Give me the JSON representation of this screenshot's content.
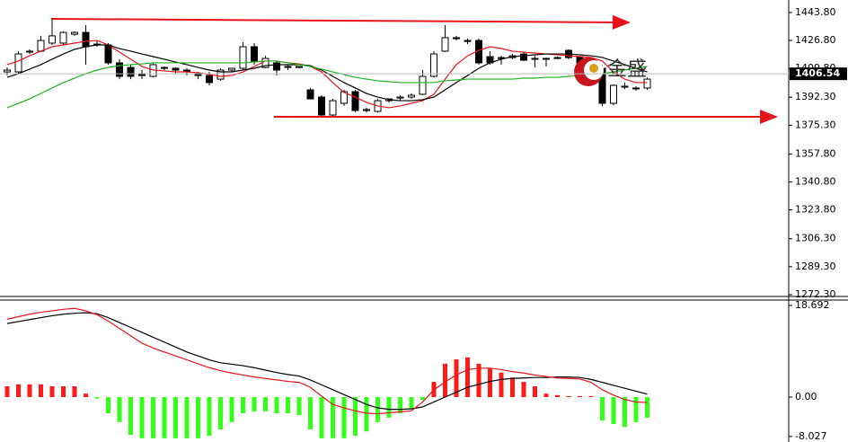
{
  "chart_data": [
    {
      "type": "candlestick",
      "up_color": "#ffffff",
      "down_color": "#000000",
      "open": [
        1407.7,
        1407.7,
        1419.7,
        1420.3,
        1425.2,
        1425.2,
        1430.6,
        1431.7,
        1424.6,
        1424.1,
        1413.2,
        1410.4,
        1406.6,
        1405.0,
        1410.4,
        1409.9,
        1408.8,
        1406.6,
        1405.5,
        1403.3,
        1408.8,
        1409.9,
        1423.0,
        1410.4,
        1413.2,
        1411.0,
        1410.4,
        1396.8,
        1392.4,
        1381.5,
        1388.6,
        1395.7,
        1384.2,
        1383.7,
        1390.2,
        1391.8,
        1392.4,
        1394.1,
        1405.0,
        1420.3,
        1428.5,
        1426.8,
        1426.8,
        1417.0,
        1416.4,
        1416.4,
        1418.6,
        1415.9,
        1415.4,
        1416.0,
        1420.8,
        1417.0,
        1413.2,
        1409.9,
        1388.6,
        1398.4,
        1397.4,
        1397.9
      ],
      "high": [
        1410.4,
        1420.3,
        1421.4,
        1429.6,
        1440.5,
        1432.3,
        1432.3,
        1436.1,
        1426.8,
        1425.2,
        1415.4,
        1412.1,
        1408.8,
        1413.2,
        1411.0,
        1410.4,
        1409.9,
        1407.7,
        1407.7,
        1409.9,
        1409.9,
        1425.7,
        1425.2,
        1417.5,
        1414.8,
        1412.1,
        1411.0,
        1397.9,
        1393.5,
        1391.3,
        1396.8,
        1396.8,
        1385.9,
        1391.3,
        1391.3,
        1393.5,
        1394.6,
        1408.8,
        1420.3,
        1436.1,
        1429.6,
        1427.9,
        1427.9,
        1420.3,
        1417.5,
        1418.6,
        1419.7,
        1417.5,
        1416.4,
        1417.0,
        1421.4,
        1417.5,
        1415.4,
        1412.1,
        1400.1,
        1401.2,
        1399.0,
        1404.4
      ],
      "low": [
        1405.5,
        1406.6,
        1418.6,
        1419.7,
        1424.1,
        1424.1,
        1429.6,
        1412.1,
        1423.0,
        1412.1,
        1403.3,
        1403.3,
        1403.3,
        1404.4,
        1408.8,
        1406.6,
        1405.5,
        1403.3,
        1399.5,
        1402.3,
        1407.7,
        1408.8,
        1412.1,
        1409.9,
        1405.5,
        1408.8,
        1409.9,
        1391.3,
        1380.4,
        1380.4,
        1387.0,
        1383.1,
        1383.1,
        1383.1,
        1389.1,
        1390.2,
        1391.3,
        1393.5,
        1404.4,
        1419.7,
        1426.8,
        1424.6,
        1412.1,
        1412.1,
        1412.1,
        1415.4,
        1414.3,
        1410.4,
        1411.0,
        1415.4,
        1415.4,
        1411.0,
        1411.0,
        1387.0,
        1387.5,
        1397.3,
        1396.2,
        1396.8
      ],
      "close": [
        1408.8,
        1418.6,
        1420.3,
        1426.8,
        1429.6,
        1431.7,
        1431.7,
        1423.0,
        1424.1,
        1413.2,
        1405.0,
        1405.0,
        1405.5,
        1412.1,
        1409.9,
        1408.8,
        1407.7,
        1405.5,
        1401.2,
        1408.8,
        1409.9,
        1423.0,
        1414.3,
        1415.9,
        1408.8,
        1410.4,
        1411.0,
        1391.3,
        1381.5,
        1390.2,
        1395.7,
        1384.2,
        1384.8,
        1390.2,
        1391.3,
        1392.4,
        1393.5,
        1405.0,
        1418.6,
        1428.5,
        1427.9,
        1426.2,
        1413.2,
        1413.2,
        1415.9,
        1417.5,
        1414.8,
        1415.4,
        1415.9,
        1416.4,
        1416.4,
        1413.2,
        1412.1,
        1388.6,
        1399.5,
        1399.0,
        1397.9,
        1403.3
      ],
      "series": [
        {
          "color": "#e8141c",
          "values": [
            1412.1,
            1414.3,
            1417.5,
            1420.3,
            1423.0,
            1424.1,
            1425.2,
            1426.3,
            1426.8,
            1424.1,
            1419.7,
            1415.4,
            1411.0,
            1408.8,
            1408.3,
            1407.7,
            1407.7,
            1407.2,
            1406.1,
            1405.0,
            1405.5,
            1407.7,
            1411.0,
            1414.3,
            1414.3,
            1413.2,
            1412.6,
            1411.0,
            1407.7,
            1401.2,
            1395.2,
            1392.4,
            1389.1,
            1387.0,
            1385.9,
            1387.0,
            1388.6,
            1390.2,
            1394.1,
            1403.3,
            1412.1,
            1417.5,
            1420.8,
            1423.0,
            1421.9,
            1420.3,
            1419.7,
            1419.2,
            1418.6,
            1418.1,
            1417.5,
            1417.0,
            1416.5,
            1414.3,
            1407.7,
            1403.3,
            1401.2,
            1401.2
          ]
        },
        {
          "color": "#000000",
          "values": [
            1404.4,
            1406.6,
            1409.4,
            1412.1,
            1415.4,
            1418.6,
            1421.4,
            1423.0,
            1424.1,
            1424.1,
            1421.9,
            1420.3,
            1418.6,
            1417.0,
            1415.4,
            1413.7,
            1412.1,
            1410.4,
            1408.8,
            1407.7,
            1407.7,
            1408.8,
            1409.9,
            1411.5,
            1412.1,
            1412.1,
            1412.1,
            1411.5,
            1408.8,
            1405.0,
            1401.2,
            1397.9,
            1394.6,
            1392.4,
            1390.8,
            1390.2,
            1390.2,
            1390.8,
            1392.4,
            1396.8,
            1401.2,
            1405.5,
            1409.9,
            1413.2,
            1415.4,
            1417.0,
            1417.5,
            1418.1,
            1418.6,
            1418.6,
            1418.6,
            1418.1,
            1417.5,
            1416.5,
            1414.3,
            1412.1,
            1409.9,
            1407.7
          ]
        },
        {
          "color": "#1fb51f",
          "values": [
            1385.9,
            1388.6,
            1391.3,
            1394.6,
            1397.9,
            1401.2,
            1403.9,
            1406.6,
            1408.8,
            1410.4,
            1411.5,
            1412.1,
            1412.6,
            1413.2,
            1413.2,
            1413.2,
            1413.2,
            1413.2,
            1413.2,
            1413.2,
            1413.2,
            1413.2,
            1413.7,
            1414.3,
            1414.3,
            1413.2,
            1412.1,
            1411.0,
            1409.4,
            1407.7,
            1406.1,
            1404.4,
            1403.3,
            1402.3,
            1401.7,
            1401.2,
            1401.2,
            1401.2,
            1401.2,
            1402.3,
            1402.8,
            1403.3,
            1403.3,
            1403.3,
            1403.3,
            1403.3,
            1403.9,
            1403.9,
            1404.4,
            1404.4,
            1405.0,
            1405.5,
            1406.1,
            1406.6,
            1407.7,
            1408.8,
            1409.9,
            1411.0
          ]
        }
      ],
      "ylim": [
        1271.2,
        1451.4
      ],
      "yticks": [
        {
          "value": 1443.8,
          "label": "1443.80"
        },
        {
          "value": 1426.8,
          "label": "1426.80"
        },
        {
          "value": 1409.8,
          "label": "1409.80"
        },
        {
          "value": 1392.3,
          "label": "1392.30"
        },
        {
          "value": 1375.3,
          "label": "1375.30"
        },
        {
          "value": 1357.8,
          "label": "1357.80"
        },
        {
          "value": 1340.8,
          "label": "1340.80"
        },
        {
          "value": 1323.8,
          "label": "1323.80"
        },
        {
          "value": 1306.3,
          "label": "1306.30"
        },
        {
          "value": 1289.3,
          "label": "1289.30"
        },
        {
          "value": 1272.3,
          "label": "1272.30"
        }
      ],
      "last_price": {
        "value": 1406.54,
        "label": "1406.54"
      },
      "watermark": "金盛"
    },
    {
      "type": "bar",
      "up_color": "#ff1a1a",
      "down_color": "#33ff1a",
      "values": [
        2.2,
        2.6,
        2.6,
        2.6,
        2.2,
        2.2,
        2.2,
        0.7,
        -0.3,
        -3.3,
        -5.1,
        -7.7,
        -8.4,
        -8.4,
        -8.4,
        -8.4,
        -8.4,
        -8.4,
        -7.9,
        -6.6,
        -5.1,
        -3.3,
        -2.9,
        -2.9,
        -3.3,
        -3.3,
        -3.7,
        -6.6,
        -8.4,
        -8.4,
        -8.4,
        -7.9,
        -7.0,
        -5.1,
        -4.2,
        -3.3,
        -2.4,
        -0.6,
        3.1,
        6.8,
        7.7,
        8.1,
        6.8,
        5.9,
        5.0,
        4.0,
        3.1,
        2.2,
        0.7,
        0.4,
        0.2,
        0.2,
        0.2,
        -4.8,
        -5.5,
        -6.1,
        -5.1,
        -4.2
      ],
      "series": [
        {
          "color": "#000000",
          "values": [
            15.0,
            15.4,
            15.8,
            16.2,
            16.6,
            16.9,
            17.1,
            17.2,
            17.0,
            16.2,
            15.2,
            14.2,
            13.2,
            12.2,
            11.2,
            10.2,
            9.2,
            8.4,
            7.6,
            7.0,
            6.7,
            6.4,
            6.0,
            5.5,
            5.0,
            4.6,
            4.3,
            3.5,
            2.5,
            1.5,
            0.5,
            -0.5,
            -1.5,
            -2.2,
            -2.5,
            -2.5,
            -2.4,
            -2.0,
            -1.0,
            0.0,
            1.0,
            2.0,
            2.6,
            3.2,
            3.6,
            3.8,
            3.9,
            4.0,
            4.0,
            4.1,
            4.1,
            4.0,
            3.6,
            3.0,
            2.4,
            1.8,
            1.2,
            0.6
          ]
        },
        {
          "color": "#e8141c",
          "values": [
            15.9,
            16.4,
            16.9,
            17.3,
            17.6,
            17.9,
            18.1,
            17.6,
            16.8,
            15.5,
            14.0,
            12.5,
            11.0,
            10.0,
            9.2,
            8.4,
            7.6,
            6.8,
            6.0,
            5.4,
            4.9,
            4.5,
            4.1,
            3.8,
            3.5,
            3.2,
            3.0,
            2.0,
            0.2,
            -1.5,
            -2.2,
            -2.8,
            -3.3,
            -3.4,
            -3.2,
            -3.0,
            -2.8,
            -1.0,
            1.5,
            3.1,
            4.5,
            5.6,
            5.9,
            5.9,
            5.6,
            5.2,
            4.9,
            4.5,
            4.2,
            3.9,
            3.8,
            3.7,
            3.0,
            1.5,
            0.4,
            -0.5,
            -1.0,
            -1.1
          ]
        }
      ],
      "ylim": [
        -9.16,
        19.79
      ],
      "yticks": [
        18.692,
        {
          "value": 0,
          "label": "0.00"
        },
        {
          "value": -8.027,
          "label": "-8.027"
        }
      ]
    }
  ]
}
